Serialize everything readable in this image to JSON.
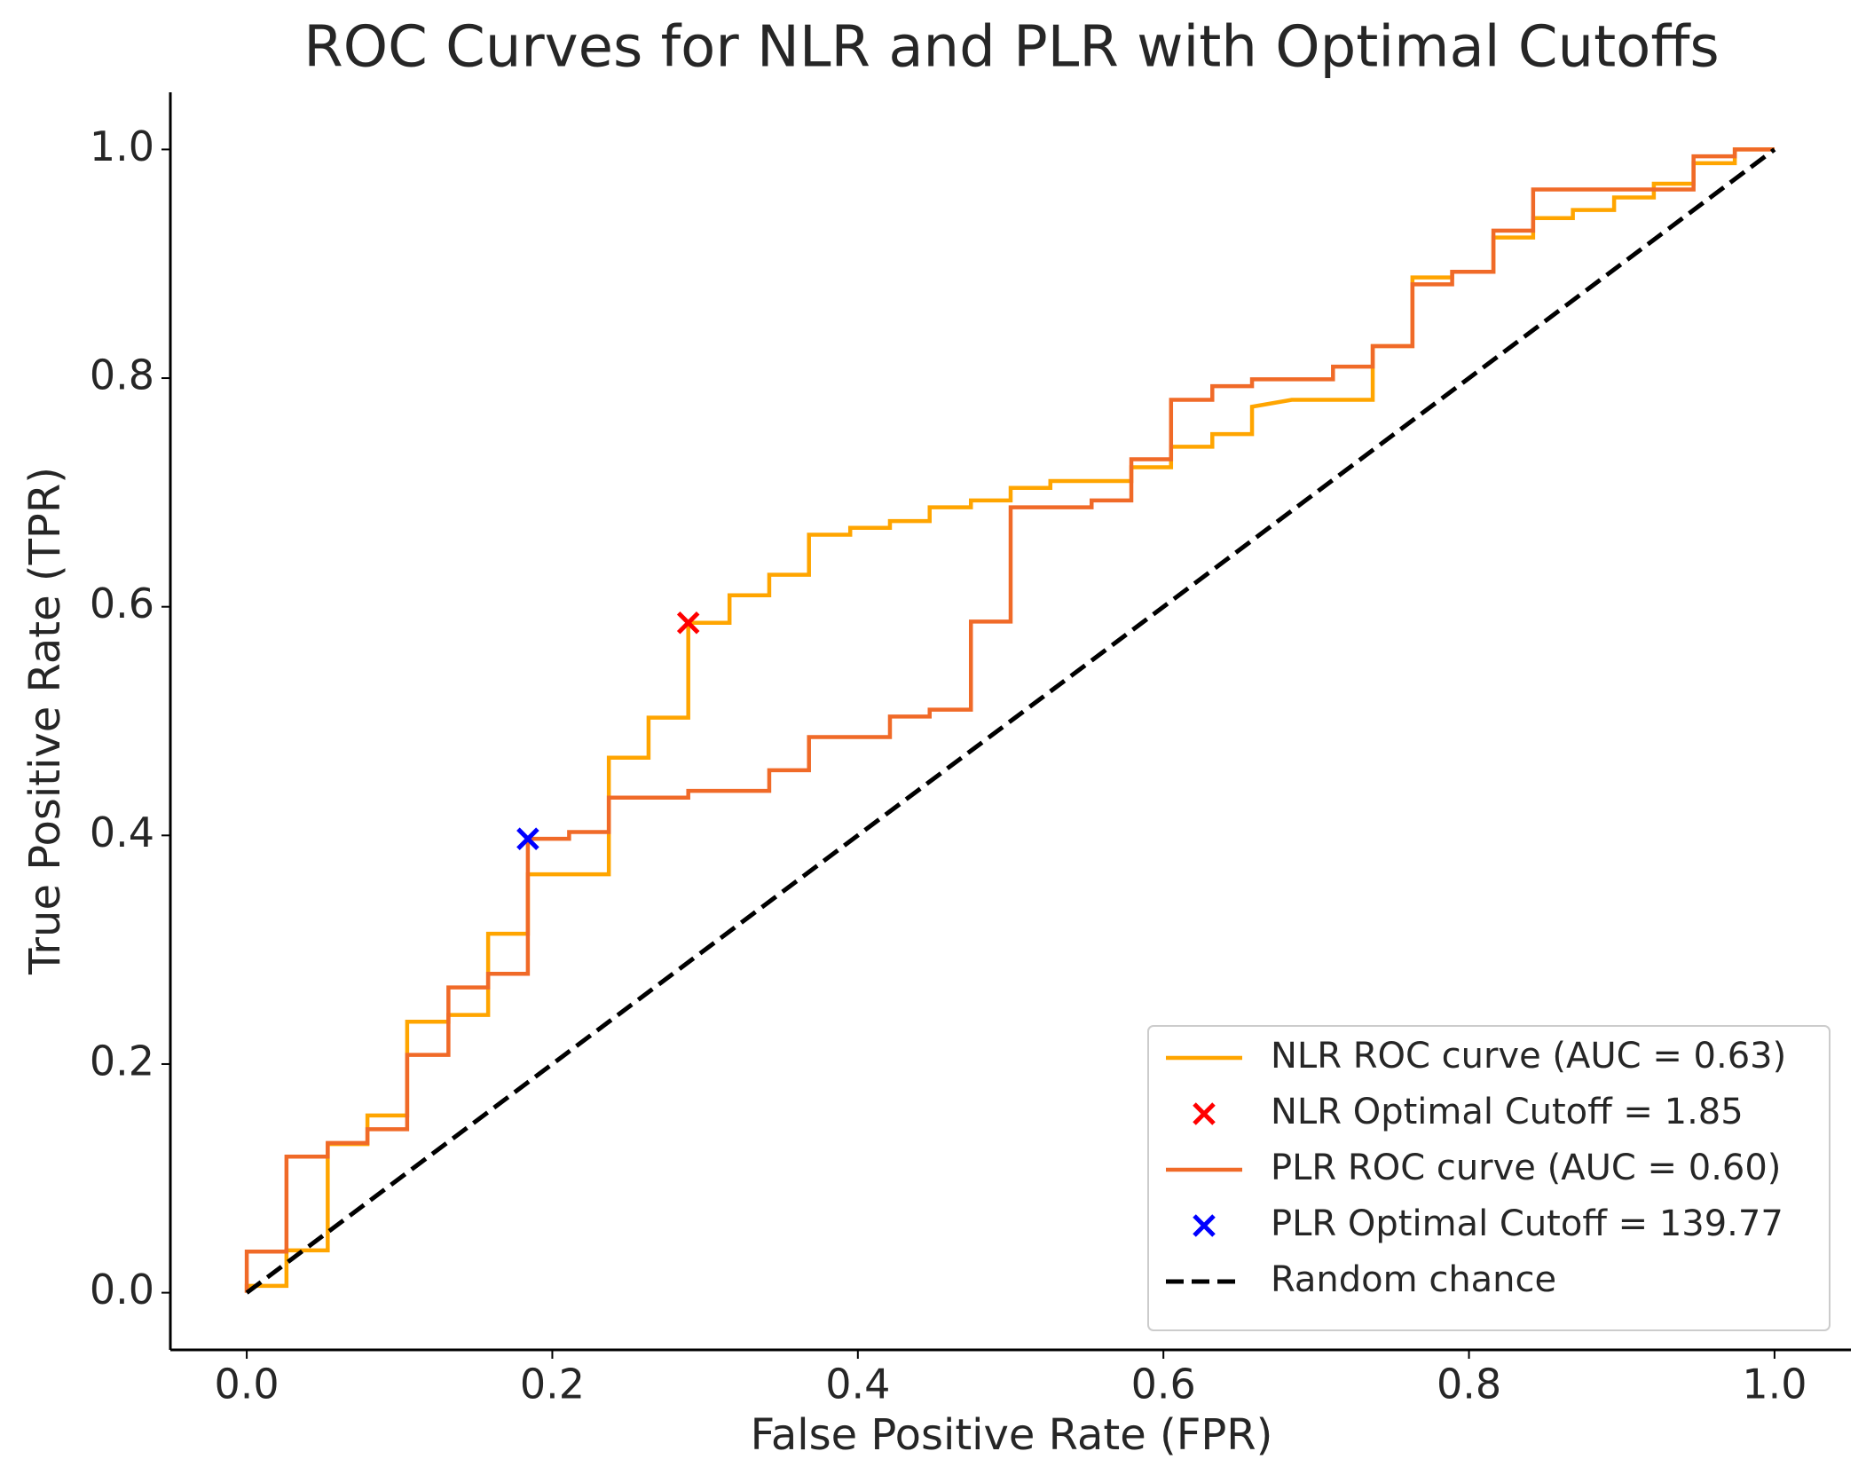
{
  "chart_data": {
    "type": "line",
    "title": "ROC Curves for NLR and PLR with Optimal Cutoffs",
    "x_label": "False Positive Rate (FPR)",
    "y_label": "True Positive Rate (TPR)",
    "xlim": [
      -0.05,
      1.05
    ],
    "ylim": [
      -0.05,
      1.05
    ],
    "xticks": [
      {
        "value": 0,
        "label": "0.0"
      },
      0.2,
      0.4,
      0.6,
      0.8,
      {
        "value": 1,
        "label": "1.0"
      }
    ],
    "yticks": [
      {
        "value": 0,
        "label": "0.0"
      },
      0.2,
      0.4,
      0.6,
      0.8,
      {
        "value": 1,
        "label": "1.0"
      }
    ],
    "grid": false,
    "legend": "lower right",
    "series": [
      {
        "name": "NLR ROC curve (AUC = 0.63)",
        "type": "line",
        "color": "#ffa500",
        "dash": false,
        "x": [
          0,
          0,
          0.026,
          0.026,
          0.053,
          0.053,
          0.079,
          0.079,
          0.105,
          0.105,
          0.132,
          0.132,
          0.158,
          0.158,
          0.184,
          0.184,
          0.237,
          0.237,
          0.263,
          0.263,
          0.289,
          0.289,
          0.316,
          0.316,
          0.342,
          0.342,
          0.368,
          0.368,
          0.395,
          0.395,
          0.421,
          0.421,
          0.447,
          0.447,
          0.474,
          0.474,
          0.5,
          0.5,
          0.526,
          0.526,
          0.579,
          0.579,
          0.605,
          0.605,
          0.632,
          0.632,
          0.658,
          0.658,
          0.684,
          0.737,
          0.737,
          0.763,
          0.763,
          0.789,
          0.789,
          0.816,
          0.816,
          0.842,
          0.842,
          0.868,
          0.868,
          0.895,
          0.895,
          0.921,
          0.921,
          0.947,
          0.947,
          0.974,
          0.974,
          1
        ],
        "y": [
          0,
          0.006,
          0.006,
          0.037,
          0.037,
          0.13,
          0.13,
          0.155,
          0.155,
          0.237,
          0.237,
          0.243,
          0.243,
          0.314,
          0.314,
          0.366,
          0.366,
          0.468,
          0.468,
          0.503,
          0.503,
          0.586,
          0.586,
          0.61,
          0.61,
          0.628,
          0.628,
          0.663,
          0.663,
          0.669,
          0.669,
          0.675,
          0.675,
          0.687,
          0.687,
          0.693,
          0.693,
          0.704,
          0.704,
          0.71,
          0.71,
          0.722,
          0.722,
          0.74,
          0.74,
          0.751,
          0.751,
          0.775,
          0.781,
          0.781,
          0.828,
          0.828,
          0.888,
          0.888,
          0.893,
          0.893,
          0.923,
          0.923,
          0.94,
          0.94,
          0.947,
          0.947,
          0.958,
          0.958,
          0.97,
          0.97,
          0.988,
          0.988,
          1,
          1
        ]
      },
      {
        "name": "NLR Optimal Cutoff = 1.85",
        "type": "scatter",
        "color": "#ff0000",
        "x": [
          0.289
        ],
        "y": [
          0.586
        ]
      },
      {
        "name": "PLR ROC curve (AUC = 0.60)",
        "type": "line",
        "color": "#f06a28",
        "dash": false,
        "x": [
          0,
          0,
          0.026,
          0.026,
          0.053,
          0.053,
          0.079,
          0.079,
          0.105,
          0.105,
          0.132,
          0.132,
          0.158,
          0.158,
          0.184,
          0.184,
          0.211,
          0.211,
          0.237,
          0.237,
          0.289,
          0.289,
          0.342,
          0.342,
          0.368,
          0.368,
          0.421,
          0.421,
          0.447,
          0.447,
          0.474,
          0.474,
          0.5,
          0.5,
          0.553,
          0.553,
          0.579,
          0.579,
          0.605,
          0.605,
          0.632,
          0.632,
          0.658,
          0.658,
          0.711,
          0.711,
          0.737,
          0.737,
          0.763,
          0.763,
          0.789,
          0.789,
          0.816,
          0.816,
          0.842,
          0.842,
          0.947,
          0.947,
          0.974,
          0.974,
          1
        ],
        "y": [
          0,
          0.036,
          0.036,
          0.119,
          0.119,
          0.131,
          0.131,
          0.143,
          0.143,
          0.208,
          0.208,
          0.267,
          0.267,
          0.279,
          0.279,
          0.397,
          0.397,
          0.403,
          0.403,
          0.433,
          0.433,
          0.439,
          0.439,
          0.457,
          0.457,
          0.486,
          0.486,
          0.504,
          0.504,
          0.51,
          0.51,
          0.587,
          0.587,
          0.687,
          0.687,
          0.693,
          0.693,
          0.729,
          0.729,
          0.781,
          0.781,
          0.793,
          0.793,
          0.799,
          0.799,
          0.81,
          0.81,
          0.828,
          0.828,
          0.882,
          0.882,
          0.893,
          0.893,
          0.929,
          0.929,
          0.965,
          0.965,
          0.994,
          0.994,
          1,
          1
        ]
      },
      {
        "name": "PLR Optimal Cutoff = 139.77",
        "type": "scatter",
        "color": "#0000ff",
        "x": [
          0.184
        ],
        "y": [
          0.397
        ]
      },
      {
        "name": "Random chance",
        "type": "line",
        "color": "#000000",
        "dash": true,
        "x": [
          0,
          1
        ],
        "y": [
          0,
          1
        ]
      }
    ]
  }
}
